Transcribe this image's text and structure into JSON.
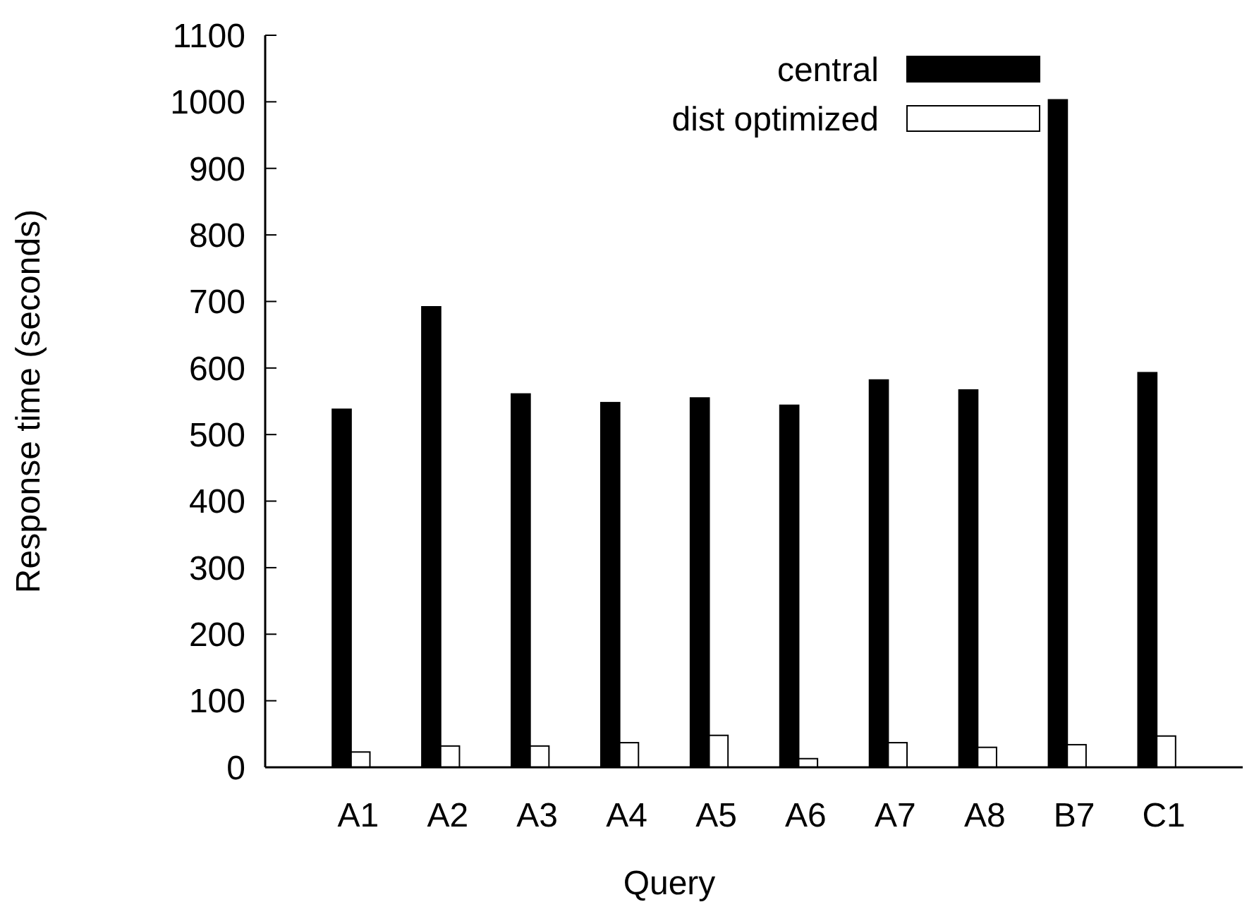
{
  "chart_data": {
    "type": "bar",
    "xlabel": "Query",
    "ylabel": "Response time (seconds)",
    "categories": [
      "A1",
      "A2",
      "A3",
      "A4",
      "A5",
      "A6",
      "A7",
      "A8",
      "B7",
      "C1"
    ],
    "series": [
      {
        "name": "central",
        "color": "#000000",
        "values": [
          538,
          692,
          561,
          548,
          555,
          544,
          582,
          567,
          1003,
          593
        ]
      },
      {
        "name": "dist optimized",
        "color": "#ffffff",
        "values": [
          23,
          32,
          32,
          37,
          48,
          13,
          37,
          30,
          34,
          47
        ]
      }
    ],
    "ylim": [
      0,
      1100
    ],
    "yticks": [
      0,
      100,
      200,
      300,
      400,
      500,
      600,
      700,
      800,
      900,
      1000,
      1100
    ],
    "legend": "top right"
  }
}
